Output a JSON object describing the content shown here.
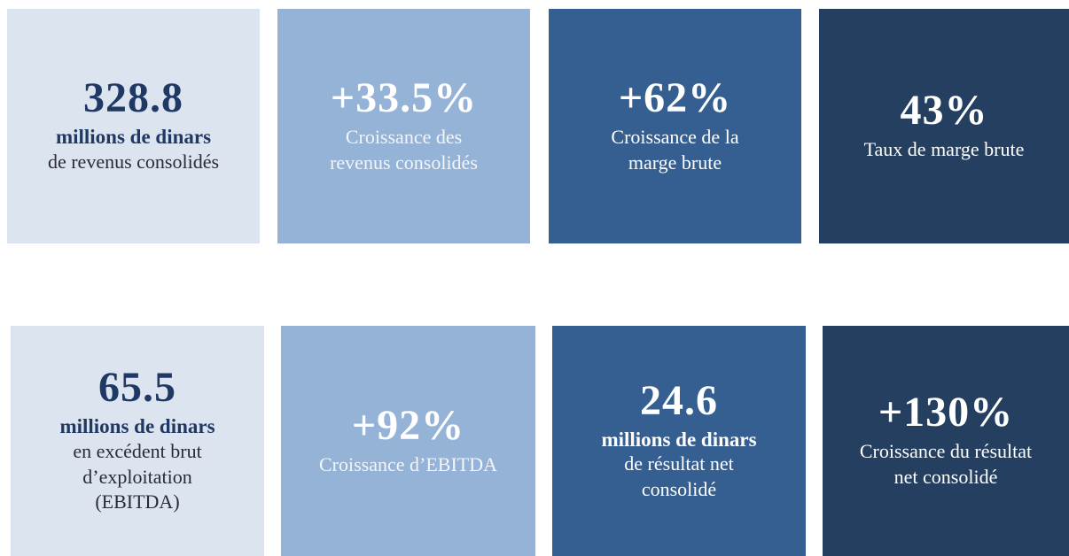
{
  "cards": [
    {
      "value": "328.8",
      "unit": "millions de dinars",
      "lines": [
        "de revenus consolidés"
      ]
    },
    {
      "value": "+33.5%",
      "lines": [
        "Croissance des",
        "revenus consolidés"
      ]
    },
    {
      "value": "+62%",
      "lines": [
        "Croissance de la",
        "marge brute"
      ]
    },
    {
      "value": "43%",
      "lines": [
        "Taux de marge brute"
      ]
    },
    {
      "value": "65.5",
      "unit": "millions de dinars",
      "lines": [
        "en excédent brut",
        "d’exploitation",
        "(EBITDA)"
      ]
    },
    {
      "value": "+92%",
      "lines": [
        "Croissance d’EBITDA"
      ]
    },
    {
      "value": "24.6",
      "unit": "millions de dinars",
      "lines": [
        "de résultat net",
        "consolidé"
      ]
    },
    {
      "value": "+130%",
      "lines": [
        "Croissance du résultat",
        "net consolidé"
      ]
    }
  ]
}
